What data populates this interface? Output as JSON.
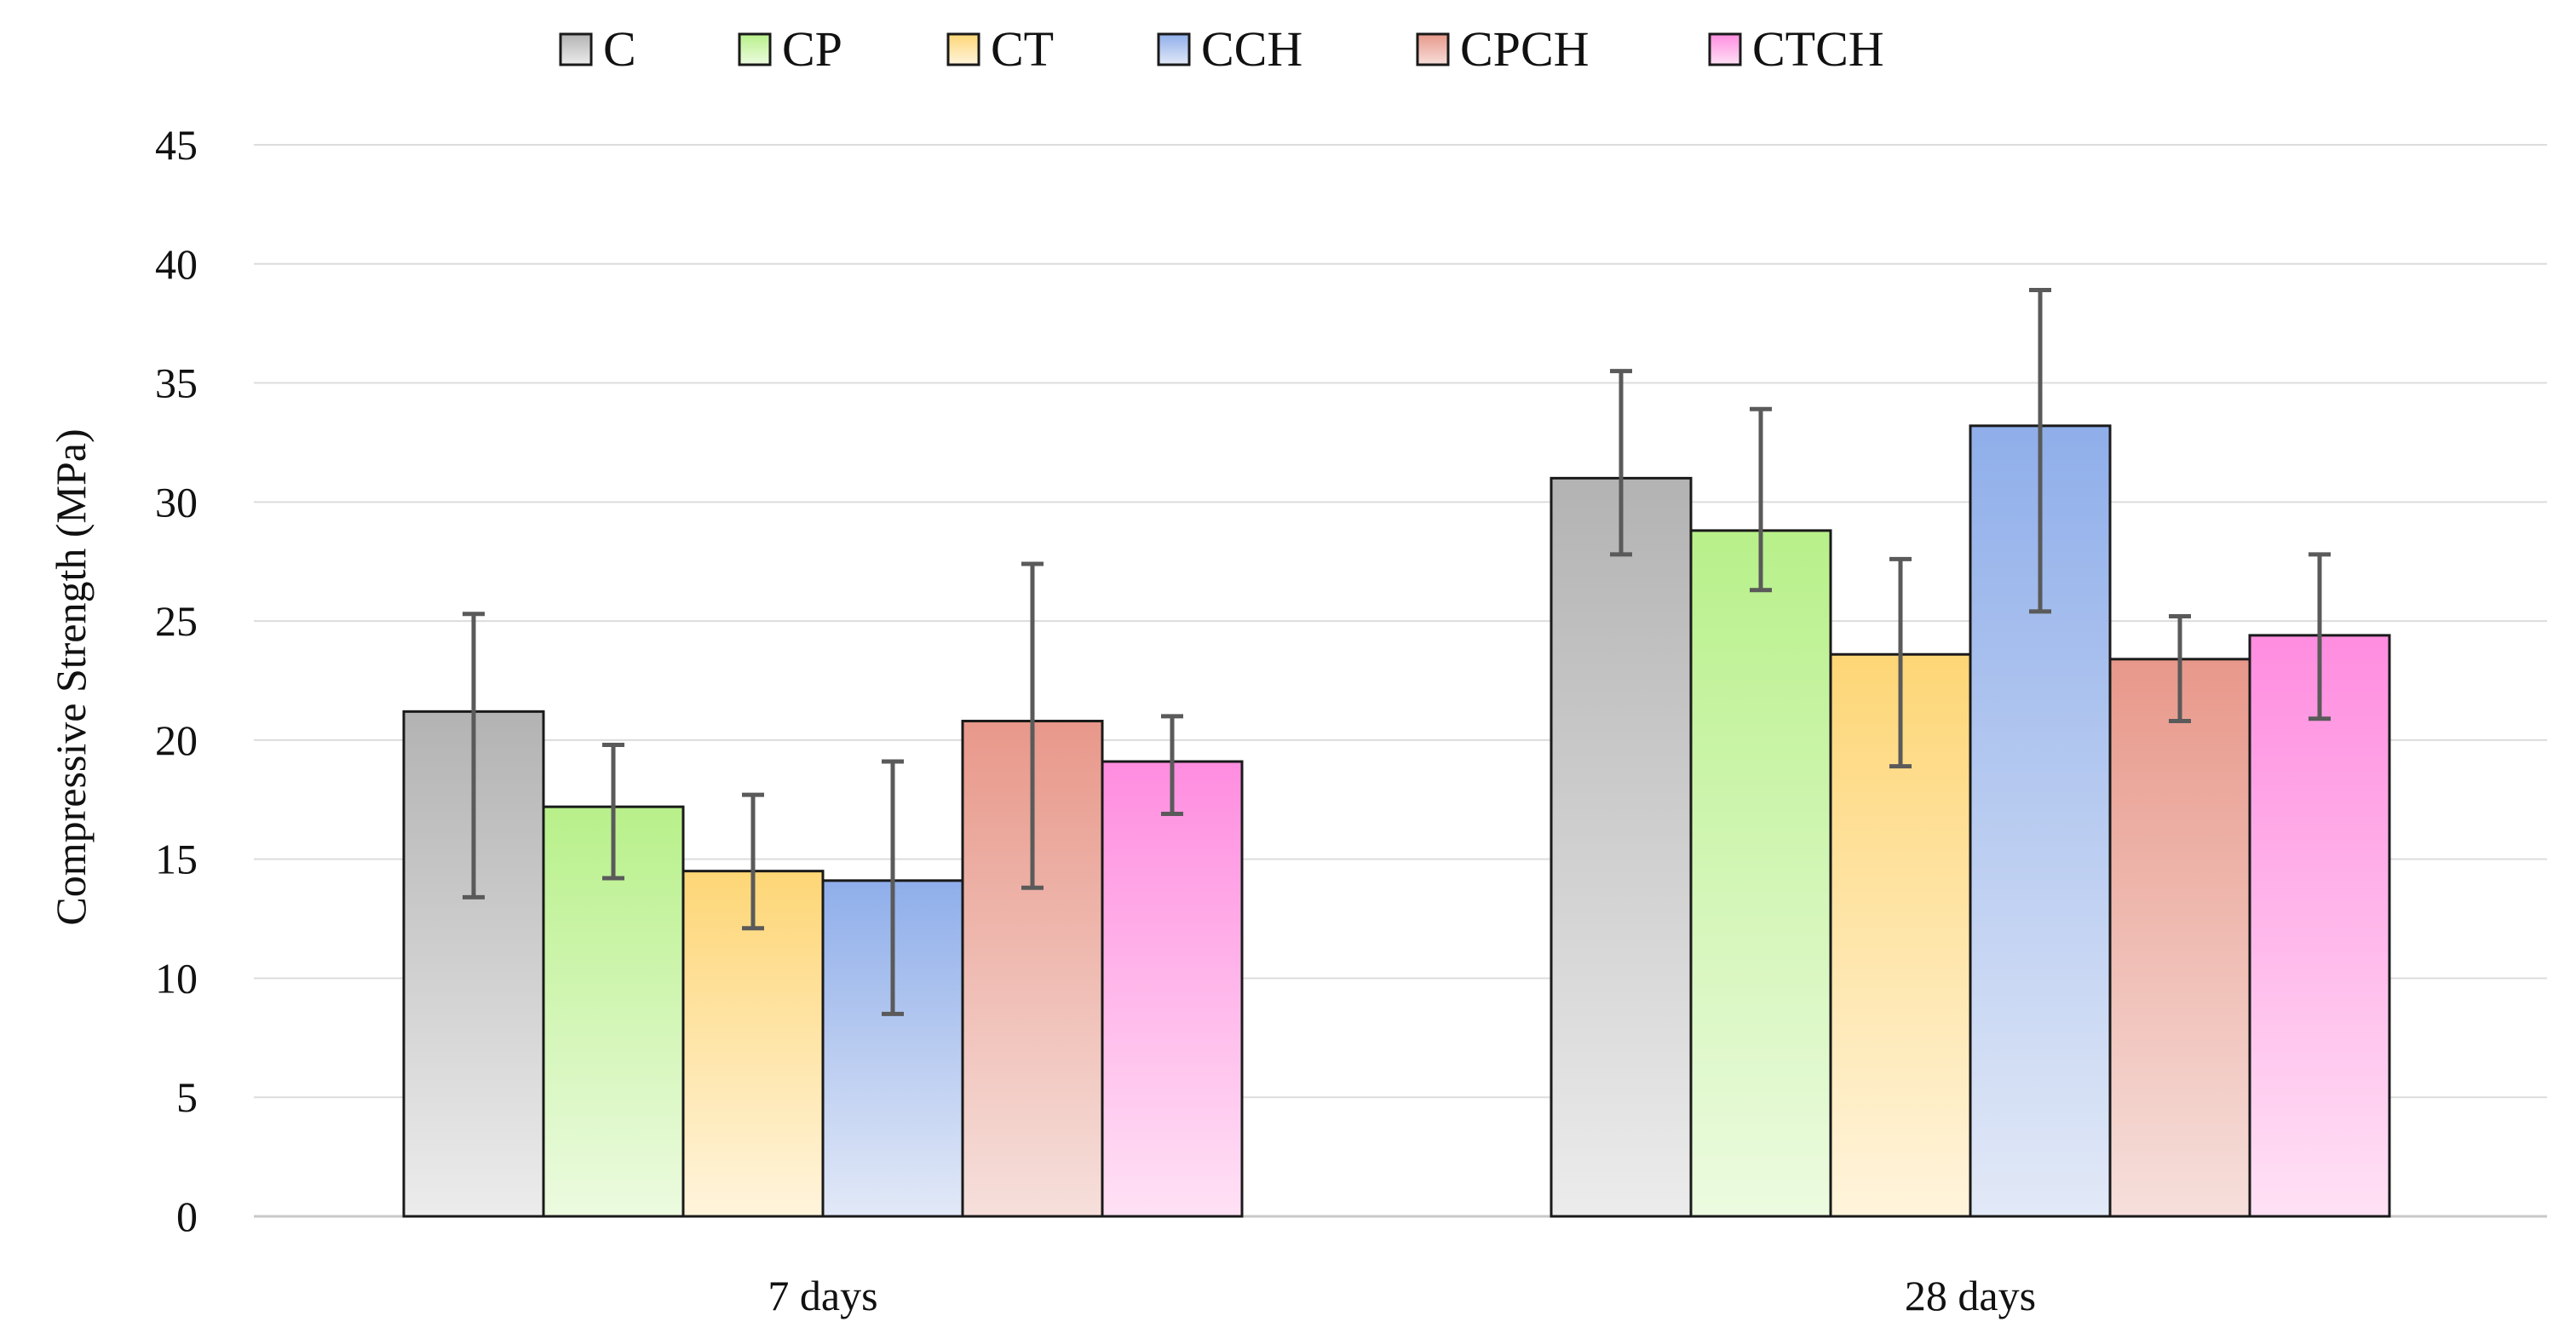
{
  "chart_data": {
    "type": "bar",
    "title": "",
    "xlabel": "",
    "ylabel": "Compressive Strength (MPa)",
    "categories": [
      "7 days",
      "28 days"
    ],
    "ylim": [
      0,
      45
    ],
    "yticks": [
      0,
      5,
      10,
      15,
      20,
      25,
      30,
      35,
      40,
      45
    ],
    "grid": true,
    "legend_position": "top",
    "series": [
      {
        "name": "C",
        "values": [
          21.2,
          31.0
        ],
        "error_low": [
          13.4,
          27.8
        ],
        "error_high": [
          25.3,
          35.5
        ],
        "color_top": "#b3b3b3",
        "color_bottom": "#ececec"
      },
      {
        "name": "CP",
        "values": [
          17.2,
          28.8
        ],
        "error_low": [
          14.2,
          26.3
        ],
        "error_high": [
          19.8,
          33.9
        ],
        "color_top": "#b8f08a",
        "color_bottom": "#ecfbe0"
      },
      {
        "name": "CT",
        "values": [
          14.5,
          23.6
        ],
        "error_low": [
          12.1,
          18.9
        ],
        "error_high": [
          17.7,
          27.6
        ],
        "color_top": "#fdd676",
        "color_bottom": "#fff4dc"
      },
      {
        "name": "CCH",
        "values": [
          14.1,
          33.2
        ],
        "error_low": [
          8.5,
          25.4
        ],
        "error_high": [
          19.1,
          38.9
        ],
        "color_top": "#8faeea",
        "color_bottom": "#e2e9f7"
      },
      {
        "name": "CPCH",
        "values": [
          20.8,
          23.4
        ],
        "error_low": [
          13.8,
          20.8
        ],
        "error_high": [
          27.4,
          25.2
        ],
        "color_top": "#e8988a",
        "color_bottom": "#f6dfdb"
      },
      {
        "name": "CTCH",
        "values": [
          19.1,
          24.4
        ],
        "error_low": [
          16.9,
          20.9
        ],
        "error_high": [
          21.0,
          27.8
        ],
        "color_top": "#ff8de0",
        "color_bottom": "#ffe1f5"
      }
    ]
  }
}
